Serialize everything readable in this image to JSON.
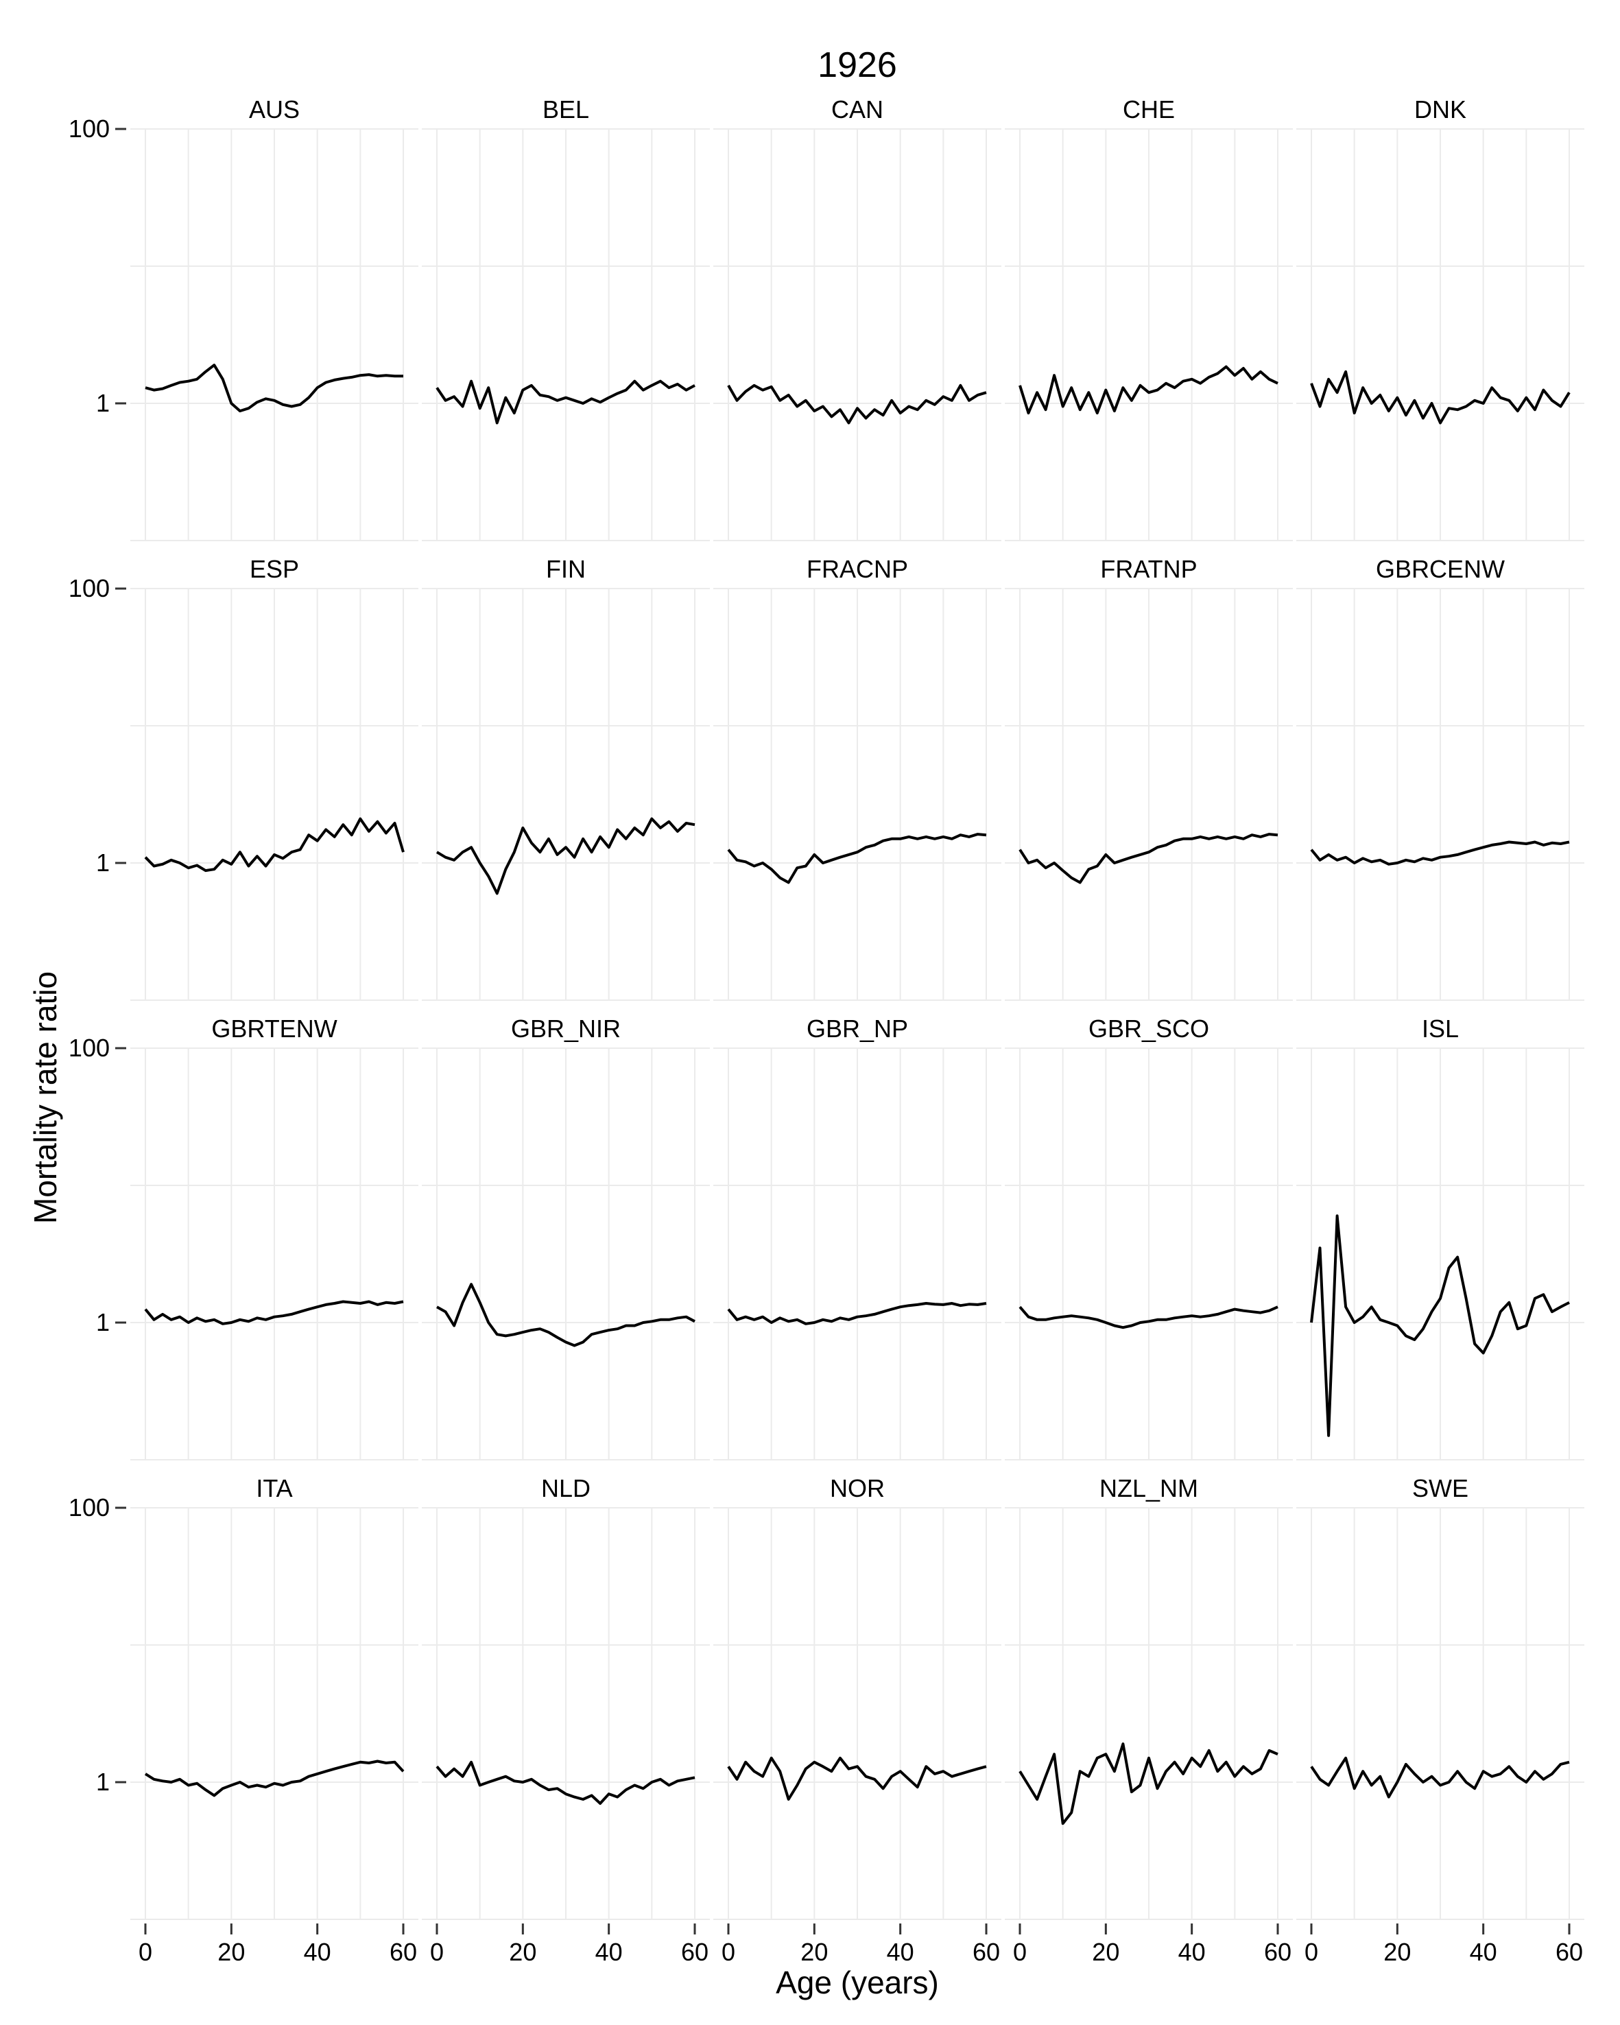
{
  "chart_data": {
    "type": "line",
    "title": "1926",
    "xlabel": "Age (years)",
    "ylabel": "Mortality rate ratio",
    "x_scale": "linear",
    "y_scale": "log10",
    "xlim": [
      0,
      60
    ],
    "ylim": [
      0.1,
      100
    ],
    "x_ticks": [
      0,
      20,
      40,
      60
    ],
    "y_ticks": [
      1,
      100
    ],
    "y_tick_labels": [
      "1",
      "100"
    ],
    "grid": "on",
    "ages": [
      0,
      2,
      4,
      6,
      8,
      10,
      12,
      14,
      16,
      18,
      20,
      22,
      24,
      26,
      28,
      30,
      32,
      34,
      36,
      38,
      40,
      42,
      44,
      46,
      48,
      50,
      52,
      54,
      56,
      58,
      60
    ],
    "facets": [
      {
        "label": "AUS",
        "values": [
          1.3,
          1.25,
          1.28,
          1.35,
          1.42,
          1.45,
          1.5,
          1.7,
          1.9,
          1.5,
          1.0,
          0.88,
          0.92,
          1.02,
          1.08,
          1.05,
          0.98,
          0.95,
          0.98,
          1.1,
          1.3,
          1.42,
          1.48,
          1.52,
          1.55,
          1.6,
          1.62,
          1.58,
          1.6,
          1.58,
          1.58
        ]
      },
      {
        "label": "BEL",
        "values": [
          1.3,
          1.05,
          1.12,
          0.95,
          1.45,
          0.92,
          1.3,
          0.72,
          1.1,
          0.85,
          1.25,
          1.35,
          1.15,
          1.12,
          1.05,
          1.1,
          1.05,
          1.0,
          1.08,
          1.02,
          1.1,
          1.18,
          1.25,
          1.45,
          1.25,
          1.35,
          1.45,
          1.3,
          1.38,
          1.25,
          1.35
        ]
      },
      {
        "label": "CAN",
        "values": [
          1.35,
          1.05,
          1.22,
          1.35,
          1.25,
          1.32,
          1.05,
          1.15,
          0.95,
          1.05,
          0.88,
          0.95,
          0.8,
          0.9,
          0.72,
          0.92,
          0.78,
          0.9,
          0.82,
          1.05,
          0.85,
          0.95,
          0.9,
          1.05,
          0.98,
          1.12,
          1.05,
          1.35,
          1.05,
          1.15,
          1.2
        ]
      },
      {
        "label": "CHE",
        "values": [
          1.35,
          0.85,
          1.2,
          0.9,
          1.6,
          0.95,
          1.3,
          0.9,
          1.2,
          0.85,
          1.25,
          0.88,
          1.3,
          1.05,
          1.35,
          1.2,
          1.25,
          1.4,
          1.3,
          1.45,
          1.5,
          1.4,
          1.55,
          1.65,
          1.85,
          1.6,
          1.8,
          1.5,
          1.7,
          1.5,
          1.4
        ]
      },
      {
        "label": "DNK",
        "values": [
          1.4,
          0.95,
          1.5,
          1.2,
          1.7,
          0.85,
          1.3,
          1.0,
          1.15,
          0.88,
          1.1,
          0.82,
          1.05,
          0.78,
          1.0,
          0.72,
          0.92,
          0.9,
          0.95,
          1.05,
          1.0,
          1.3,
          1.1,
          1.05,
          0.88,
          1.1,
          0.9,
          1.25,
          1.05,
          0.95,
          1.2
        ]
      },
      {
        "label": "ESP",
        "values": [
          1.1,
          0.95,
          0.98,
          1.05,
          1.0,
          0.92,
          0.96,
          0.88,
          0.9,
          1.05,
          0.98,
          1.2,
          0.95,
          1.12,
          0.95,
          1.15,
          1.08,
          1.2,
          1.25,
          1.6,
          1.45,
          1.75,
          1.55,
          1.9,
          1.6,
          2.1,
          1.7,
          2.0,
          1.65,
          1.95,
          1.2
        ]
      },
      {
        "label": "FIN",
        "values": [
          1.2,
          1.1,
          1.05,
          1.2,
          1.3,
          1.0,
          0.8,
          0.6,
          0.9,
          1.2,
          1.8,
          1.4,
          1.2,
          1.5,
          1.15,
          1.3,
          1.1,
          1.5,
          1.2,
          1.55,
          1.3,
          1.75,
          1.5,
          1.8,
          1.6,
          2.1,
          1.8,
          2.0,
          1.7,
          1.95,
          1.9
        ]
      },
      {
        "label": "FRACNP",
        "values": [
          1.25,
          1.05,
          1.02,
          0.95,
          1.0,
          0.9,
          0.78,
          0.72,
          0.92,
          0.95,
          1.15,
          1.0,
          1.05,
          1.1,
          1.15,
          1.2,
          1.3,
          1.35,
          1.45,
          1.5,
          1.5,
          1.55,
          1.5,
          1.55,
          1.5,
          1.55,
          1.5,
          1.6,
          1.55,
          1.62,
          1.6
        ]
      },
      {
        "label": "FRATNP",
        "values": [
          1.25,
          1.0,
          1.05,
          0.92,
          1.0,
          0.88,
          0.78,
          0.72,
          0.9,
          0.95,
          1.15,
          1.0,
          1.05,
          1.1,
          1.15,
          1.2,
          1.3,
          1.35,
          1.45,
          1.5,
          1.5,
          1.55,
          1.5,
          1.55,
          1.5,
          1.55,
          1.5,
          1.6,
          1.55,
          1.62,
          1.6
        ]
      },
      {
        "label": "GBRCENW",
        "values": [
          1.25,
          1.05,
          1.15,
          1.05,
          1.1,
          1.0,
          1.08,
          1.02,
          1.05,
          0.98,
          1.0,
          1.05,
          1.02,
          1.08,
          1.05,
          1.1,
          1.12,
          1.15,
          1.2,
          1.25,
          1.3,
          1.35,
          1.38,
          1.42,
          1.4,
          1.38,
          1.42,
          1.35,
          1.4,
          1.38,
          1.42
        ]
      },
      {
        "label": "GBRTENW",
        "values": [
          1.25,
          1.05,
          1.15,
          1.05,
          1.1,
          1.0,
          1.08,
          1.02,
          1.05,
          0.98,
          1.0,
          1.05,
          1.02,
          1.08,
          1.05,
          1.1,
          1.12,
          1.15,
          1.2,
          1.25,
          1.3,
          1.35,
          1.38,
          1.42,
          1.4,
          1.38,
          1.42,
          1.35,
          1.4,
          1.38,
          1.42
        ]
      },
      {
        "label": "GBR_NIR",
        "values": [
          1.3,
          1.2,
          0.95,
          1.4,
          1.9,
          1.4,
          1.0,
          0.82,
          0.8,
          0.82,
          0.85,
          0.88,
          0.9,
          0.85,
          0.78,
          0.72,
          0.68,
          0.72,
          0.82,
          0.85,
          0.88,
          0.9,
          0.95,
          0.95,
          1.0,
          1.02,
          1.05,
          1.05,
          1.08,
          1.1,
          1.02
        ]
      },
      {
        "label": "GBR_NP",
        "values": [
          1.25,
          1.05,
          1.1,
          1.05,
          1.1,
          1.0,
          1.08,
          1.02,
          1.05,
          0.98,
          1.0,
          1.05,
          1.02,
          1.08,
          1.05,
          1.1,
          1.12,
          1.15,
          1.2,
          1.25,
          1.3,
          1.33,
          1.35,
          1.38,
          1.36,
          1.35,
          1.38,
          1.33,
          1.36,
          1.35,
          1.38
        ]
      },
      {
        "label": "GBR_SCO",
        "values": [
          1.3,
          1.1,
          1.05,
          1.05,
          1.08,
          1.1,
          1.12,
          1.1,
          1.08,
          1.05,
          1.0,
          0.95,
          0.92,
          0.95,
          1.0,
          1.02,
          1.05,
          1.05,
          1.08,
          1.1,
          1.12,
          1.1,
          1.12,
          1.15,
          1.2,
          1.25,
          1.22,
          1.2,
          1.18,
          1.22,
          1.3
        ]
      },
      {
        "label": "ISL",
        "values": [
          1.0,
          3.5,
          0.15,
          6.0,
          1.3,
          1.0,
          1.1,
          1.3,
          1.05,
          1.0,
          0.95,
          0.8,
          0.75,
          0.9,
          1.2,
          1.5,
          2.5,
          3.0,
          1.5,
          0.7,
          0.6,
          0.8,
          1.2,
          1.4,
          0.9,
          0.95,
          1.5,
          1.6,
          1.2,
          1.3,
          1.4
        ]
      },
      {
        "label": "ITA",
        "values": [
          1.15,
          1.05,
          1.02,
          1.0,
          1.05,
          0.95,
          0.98,
          0.88,
          0.8,
          0.9,
          0.95,
          1.0,
          0.92,
          0.95,
          0.92,
          0.98,
          0.95,
          1.0,
          1.02,
          1.1,
          1.15,
          1.2,
          1.25,
          1.3,
          1.35,
          1.4,
          1.38,
          1.42,
          1.38,
          1.4,
          1.2
        ]
      },
      {
        "label": "NLD",
        "values": [
          1.3,
          1.1,
          1.25,
          1.1,
          1.4,
          0.95,
          1.0,
          1.05,
          1.1,
          1.02,
          1.0,
          1.05,
          0.95,
          0.88,
          0.9,
          0.82,
          0.78,
          0.75,
          0.8,
          0.7,
          0.82,
          0.78,
          0.88,
          0.95,
          0.9,
          1.0,
          1.05,
          0.95,
          1.02,
          1.05,
          1.08
        ]
      },
      {
        "label": "NOR",
        "values": [
          1.3,
          1.05,
          1.4,
          1.2,
          1.1,
          1.5,
          1.2,
          0.75,
          0.95,
          1.25,
          1.4,
          1.3,
          1.2,
          1.5,
          1.25,
          1.3,
          1.1,
          1.05,
          0.9,
          1.1,
          1.2,
          1.05,
          0.92,
          1.3,
          1.15,
          1.2,
          1.1,
          1.15,
          1.2,
          1.25,
          1.3
        ]
      },
      {
        "label": "NZL_NM",
        "values": [
          1.2,
          0.95,
          0.75,
          1.1,
          1.6,
          0.5,
          0.6,
          1.2,
          1.1,
          1.5,
          1.6,
          1.2,
          1.9,
          0.85,
          0.95,
          1.5,
          0.9,
          1.2,
          1.4,
          1.15,
          1.5,
          1.3,
          1.7,
          1.2,
          1.4,
          1.1,
          1.3,
          1.15,
          1.25,
          1.7,
          1.6
        ]
      },
      {
        "label": "SWE",
        "values": [
          1.3,
          1.05,
          0.95,
          1.2,
          1.5,
          0.9,
          1.2,
          0.95,
          1.1,
          0.78,
          1.0,
          1.35,
          1.15,
          1.0,
          1.1,
          0.95,
          1.0,
          1.2,
          1.0,
          0.9,
          1.2,
          1.1,
          1.15,
          1.3,
          1.1,
          1.0,
          1.2,
          1.05,
          1.15,
          1.35,
          1.4
        ]
      }
    ]
  }
}
